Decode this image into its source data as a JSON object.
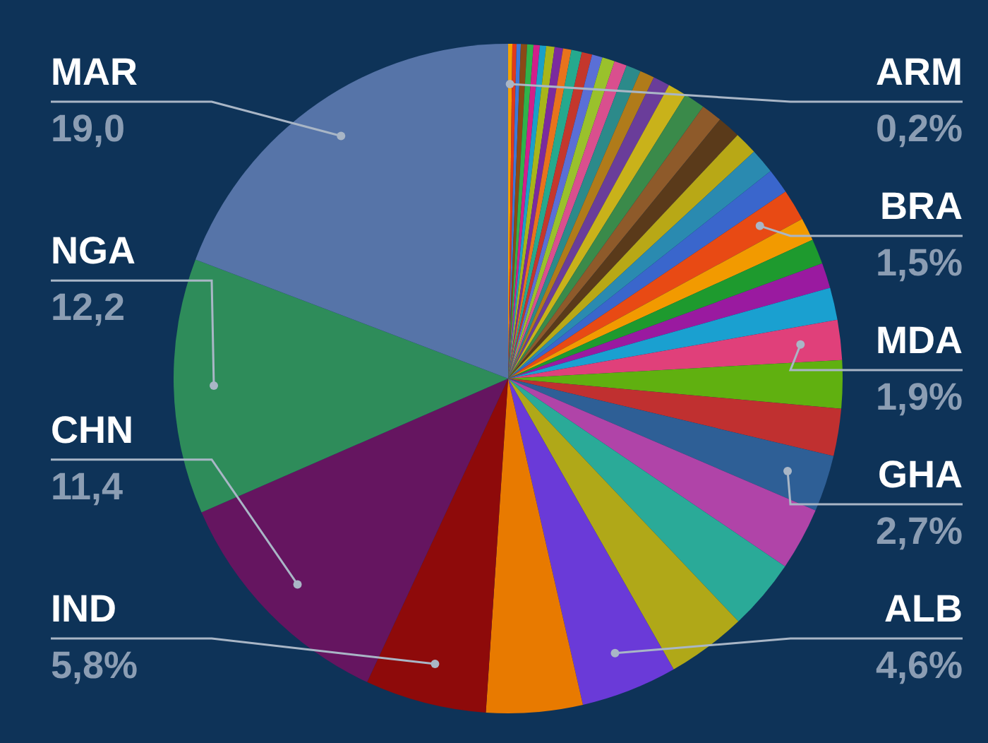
{
  "chart_data": {
    "type": "pie",
    "categories": [
      "ARM",
      null,
      null,
      null,
      null,
      null,
      null,
      null,
      null,
      null,
      null,
      null,
      null,
      null,
      null,
      null,
      null,
      null,
      null,
      null,
      null,
      null,
      null,
      null,
      null,
      "BRA",
      null,
      null,
      null,
      null,
      "MDA",
      null,
      null,
      "GHA",
      null,
      null,
      null,
      "ALB",
      null,
      "IND",
      "CHN",
      "NGA",
      "MAR"
    ],
    "values": [
      0.2,
      0.2,
      0.2,
      0.3,
      0.3,
      0.3,
      0.3,
      0.4,
      0.4,
      0.4,
      0.5,
      0.5,
      0.5,
      0.6,
      0.6,
      0.7,
      0.7,
      0.8,
      0.9,
      1.0,
      1.0,
      1.1,
      1.1,
      1.2,
      1.2,
      1.5,
      1.1,
      1.2,
      1.2,
      1.55,
      1.9,
      2.3,
      2.25,
      2.7,
      3.0,
      3.4,
      3.8,
      4.6,
      4.6,
      5.8,
      11.4,
      12.2,
      19.0
    ],
    "value_labels": [
      "0,2%",
      null,
      null,
      null,
      null,
      null,
      null,
      null,
      null,
      null,
      null,
      null,
      null,
      null,
      null,
      null,
      null,
      null,
      null,
      null,
      null,
      null,
      null,
      null,
      null,
      "1,5%",
      null,
      null,
      null,
      null,
      "1,9%",
      null,
      null,
      "2,7%",
      null,
      null,
      null,
      "4,6%",
      null,
      "5,8%",
      "11,4",
      "12,2",
      "19,0"
    ],
    "colors": [
      "#f4a300",
      "#e0391c",
      "#3b78d8",
      "#8a4a16",
      "#2fb34a",
      "#d21f8a",
      "#1aa0c8",
      "#a8b51a",
      "#7b2a9e",
      "#e8731c",
      "#25a98e",
      "#c4372c",
      "#5a6fd6",
      "#9ac12c",
      "#d94f8e",
      "#2c8a8a",
      "#b07b1a",
      "#6a3d9a",
      "#c9b21a",
      "#3a8a4a",
      "#8e5a2a",
      "#5a3a1a",
      "#b8a816",
      "#2a8ab0",
      "#3a66cc",
      "#e84a14",
      "#f29a00",
      "#1e9a2e",
      "#9a1aa0",
      "#1aa0d0",
      "#e0407a",
      "#60b010",
      "#c03030",
      "#2e5f96",
      "#b044a8",
      "#2aaa98",
      "#b0a818",
      "#6a3ad8",
      "#e87a00",
      "#8e0a0a",
      "#651560",
      "#2e8c5a",
      "#5674a8"
    ]
  }
}
